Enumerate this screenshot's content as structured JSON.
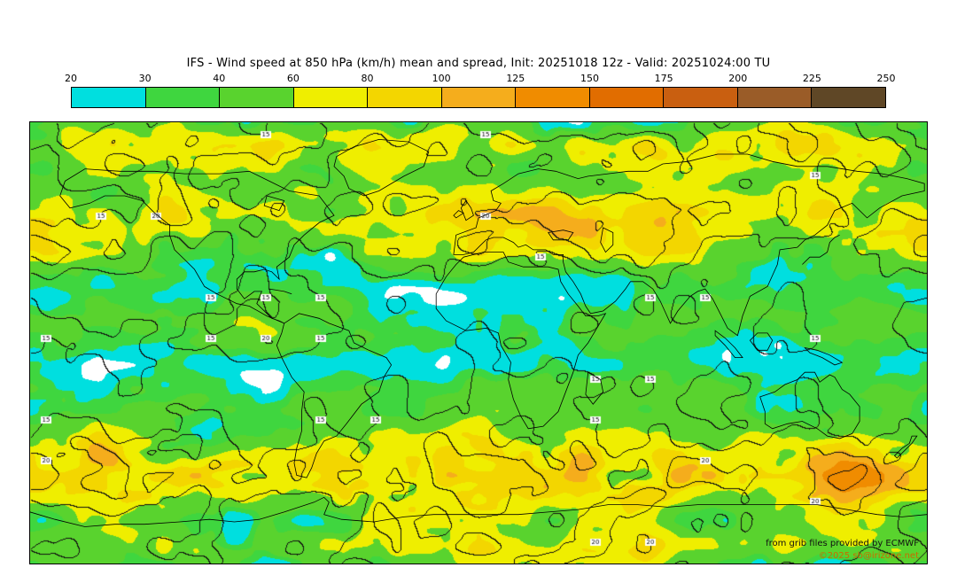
{
  "title": "IFS - Wind speed at 850 hPa (km/h) mean and spread, Init: 20251018 12z - Valid: 20251024:00 TU",
  "colorbar": {
    "tick_labels": [
      "20",
      "30",
      "40",
      "60",
      "80",
      "100",
      "125",
      "150",
      "175",
      "200",
      "225",
      "250"
    ],
    "segment_colors": [
      "#00dfdf",
      "#3fd63f",
      "#59d32e",
      "#efee00",
      "#f3d600",
      "#f5ad1c",
      "#f08c00",
      "#e16d00",
      "#c95f10",
      "#9a5c28",
      "#5f4726"
    ]
  },
  "map": {
    "units": "km/h",
    "level_thresholds": [
      20,
      30,
      40,
      60,
      80,
      100,
      125,
      150,
      175,
      200,
      225,
      250
    ],
    "below_min_color": "#ffffff",
    "contour_color": "#111111",
    "contour_label_values": [
      15,
      20,
      25
    ]
  },
  "attribution": {
    "provider": "from grib files provided by ECMWF",
    "copyright": "©2025 sb@irizone.net"
  },
  "chart_data": {
    "type": "heatmap",
    "title": "IFS - Wind speed at 850 hPa (km/h) mean and spread",
    "init": "20251018 12z",
    "valid": "20251024:00 TU",
    "units": "km/h",
    "colorbar_ticks": [
      20,
      30,
      40,
      60,
      80,
      100,
      125,
      150,
      175,
      200,
      225,
      250
    ],
    "legend_position": "top",
    "projection": "equirectangular world, lon -180..180, lat 90..-90"
  }
}
